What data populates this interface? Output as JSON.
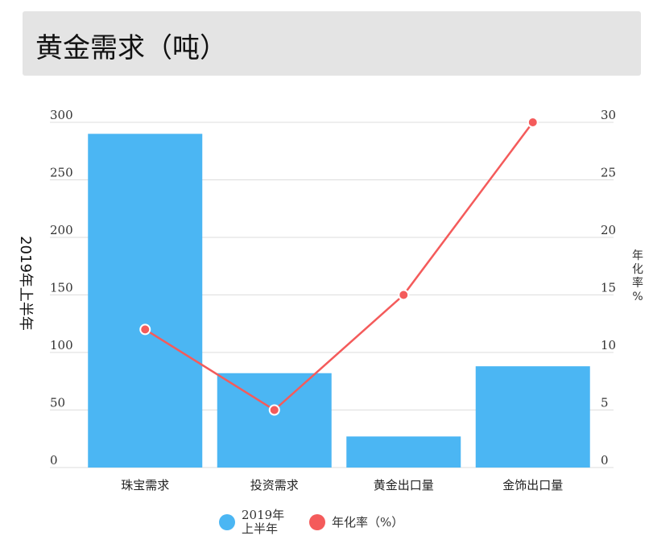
{
  "title": "黄金需求（吨）",
  "chart_data": {
    "type": "bar",
    "categories": [
      "珠宝需求",
      "投资需求",
      "黄金出口量",
      "金饰出口量"
    ],
    "series": [
      {
        "name": "2019年上半年",
        "type": "bar",
        "axis": "left",
        "values": [
          290,
          82,
          27,
          88
        ]
      },
      {
        "name": "年化率（%）",
        "type": "line",
        "axis": "right",
        "values": [
          12,
          5,
          15,
          30
        ]
      }
    ],
    "y_left": {
      "label": "2019年上半年",
      "min": 0,
      "max": 300,
      "ticks": [
        0,
        50,
        100,
        150,
        200,
        250,
        300
      ]
    },
    "y_right": {
      "label": "年化率%",
      "min": 0,
      "max": 30,
      "ticks": [
        0,
        5,
        10,
        15,
        20,
        25,
        30
      ]
    },
    "grid": true,
    "legend_position": "bottom"
  },
  "legend": {
    "bar_label_line1": "2019年",
    "bar_label_line2": "上半年",
    "line_label": "年化率（%）"
  },
  "colors": {
    "bar": "#4bb6f3",
    "line": "#f45b5b",
    "grid": "#dddddd",
    "title_bg": "#e4e4e4"
  }
}
